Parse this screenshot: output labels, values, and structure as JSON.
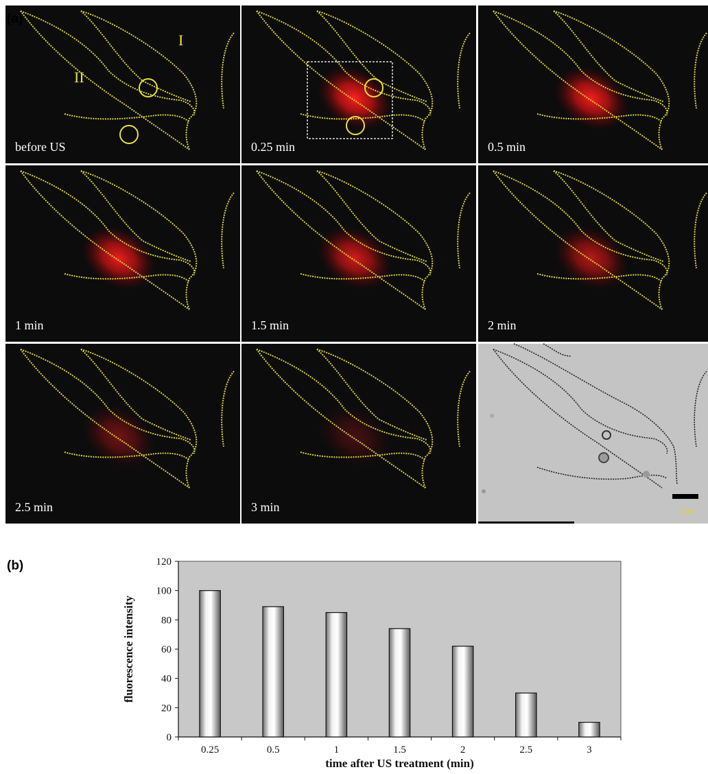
{
  "figure_a": {
    "panel_label": "(a)",
    "region_labels": {
      "one": "I",
      "two": "II"
    },
    "frames": [
      {
        "label": "before US",
        "intensity": 0
      },
      {
        "label": "0.25 min",
        "intensity": 100
      },
      {
        "label": "0.5 min",
        "intensity": 89
      },
      {
        "label": "1 min",
        "intensity": 85
      },
      {
        "label": "1.5  min",
        "intensity": 74
      },
      {
        "label": "2 min",
        "intensity": 62
      },
      {
        "label": "2.5 min",
        "intensity": 30
      },
      {
        "label": "3 min",
        "intensity": 10
      }
    ],
    "brightfield": {
      "scale_label": "10μm"
    },
    "colors": {
      "outline": "#d9d23a",
      "fluorescence": "#ff1a1a",
      "frame_bg": "#0c0c0d",
      "brightfield_bg": "#c4c4c4"
    }
  },
  "figure_b": {
    "panel_label": "(b)"
  },
  "chart_data": {
    "type": "bar",
    "categories": [
      "0.25",
      "0.5",
      "1",
      "1.5",
      "2",
      "2.5",
      "3"
    ],
    "values": [
      100,
      89,
      85,
      74,
      62,
      30,
      10
    ],
    "xlabel": "time after US treatment (min)",
    "ylabel": "fluorescence intensity",
    "ylim": [
      0,
      120
    ],
    "yticks": [
      0,
      20,
      40,
      60,
      80,
      100,
      120
    ],
    "grid": false,
    "legend": "none",
    "colors": {
      "plot_background": "#c8c8c8",
      "bar": "#e0e0e0"
    }
  }
}
